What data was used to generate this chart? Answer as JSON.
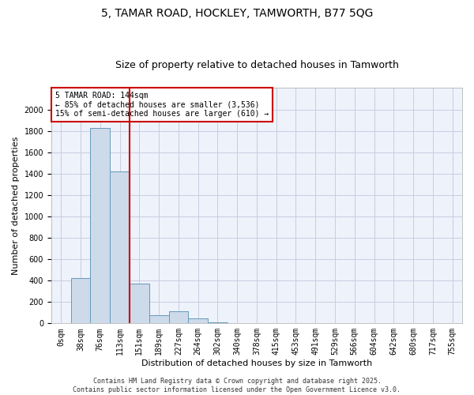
{
  "title": "5, TAMAR ROAD, HOCKLEY, TAMWORTH, B77 5QG",
  "subtitle": "Size of property relative to detached houses in Tamworth",
  "xlabel": "Distribution of detached houses by size in Tamworth",
  "ylabel": "Number of detached properties",
  "bar_color": "#ccdaea",
  "bar_edge_color": "#6699bb",
  "vline_color": "#cc0000",
  "vline_x": 3.5,
  "annotation_text": "5 TAMAR ROAD: 144sqm\n← 85% of detached houses are smaller (3,536)\n15% of semi-detached houses are larger (610) →",
  "annotation_box_color": "#ffffff",
  "annotation_box_edge": "#cc0000",
  "categories": [
    "0sqm",
    "38sqm",
    "76sqm",
    "113sqm",
    "151sqm",
    "189sqm",
    "227sqm",
    "264sqm",
    "302sqm",
    "340sqm",
    "378sqm",
    "415sqm",
    "453sqm",
    "491sqm",
    "529sqm",
    "566sqm",
    "604sqm",
    "642sqm",
    "680sqm",
    "717sqm",
    "755sqm"
  ],
  "values": [
    5,
    420,
    1830,
    1420,
    370,
    80,
    110,
    50,
    10,
    5,
    0,
    0,
    0,
    0,
    0,
    0,
    0,
    0,
    0,
    0,
    0
  ],
  "ylim": [
    0,
    2200
  ],
  "yticks": [
    0,
    200,
    400,
    600,
    800,
    1000,
    1200,
    1400,
    1600,
    1800,
    2000
  ],
  "background_color": "#eef2fb",
  "grid_color": "#c8cce0",
  "footer": "Contains HM Land Registry data © Crown copyright and database right 2025.\nContains public sector information licensed under the Open Government Licence v3.0.",
  "title_fontsize": 10,
  "subtitle_fontsize": 9,
  "tick_fontsize": 7,
  "ylabel_fontsize": 8,
  "xlabel_fontsize": 8,
  "annotation_fontsize": 7,
  "footer_fontsize": 6
}
